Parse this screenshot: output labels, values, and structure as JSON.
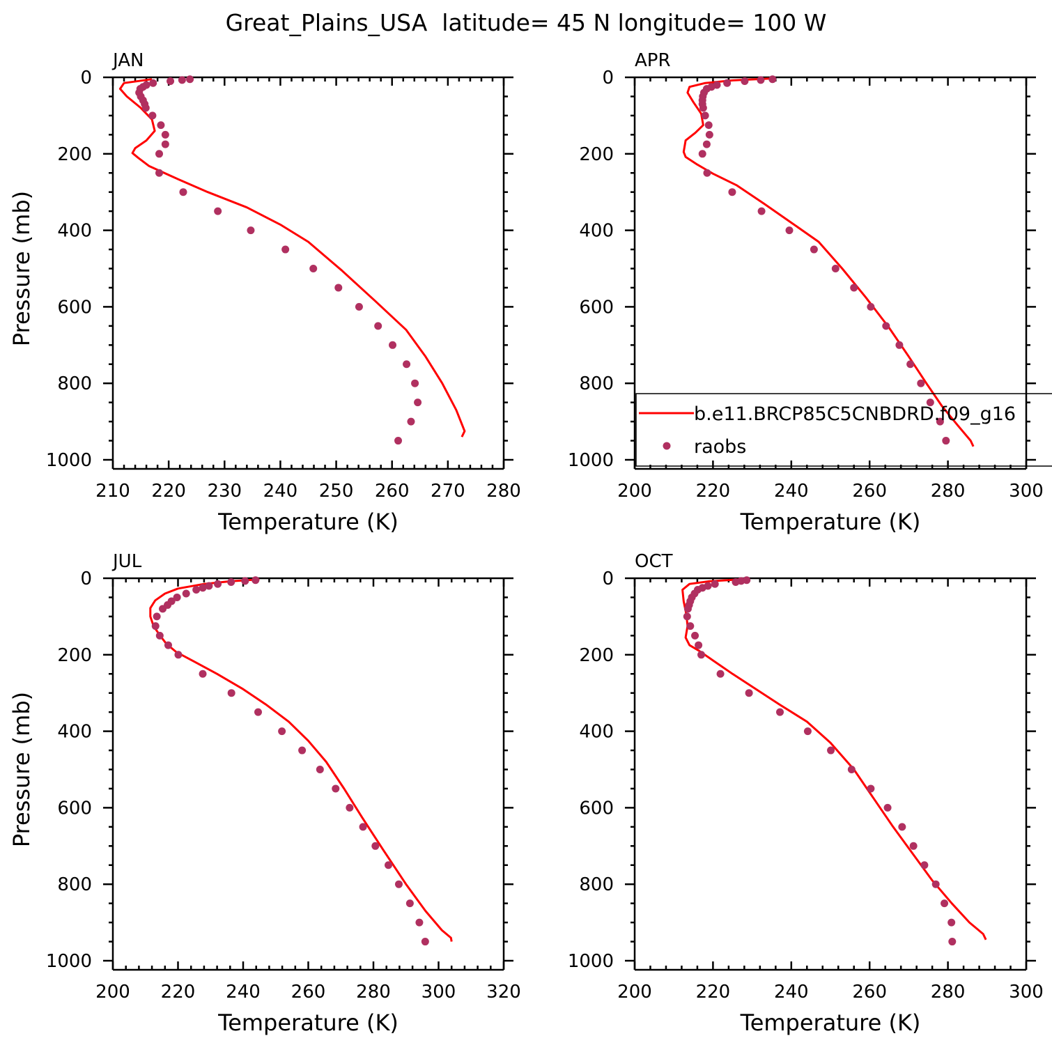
{
  "figure": {
    "title": "Great_Plains_USA  latitude= 45 N longitude= 100 W",
    "colors": {
      "model": "#ff0000",
      "obs": "#b03060",
      "axes": "#000000"
    },
    "legend": {
      "placement": "lower part of APR panel, overflowing to the right",
      "entries": [
        {
          "label": "b.e11.BRCP85C5CNBDRD.f09_g16",
          "symbol": "line",
          "color": "#ff0000"
        },
        {
          "label": "raobs",
          "symbol": "dot",
          "color": "#b03060"
        }
      ]
    }
  },
  "chart_data": [
    {
      "type": "line",
      "panel_title": "JAN",
      "xlabel": "Temperature (K)",
      "ylabel": "Pressure (mb)",
      "xlim": [
        210,
        280
      ],
      "ylim": [
        1000,
        0
      ],
      "xticks": [
        210,
        220,
        230,
        240,
        250,
        260,
        270,
        280
      ],
      "yticks": [
        0,
        200,
        400,
        600,
        800,
        1000
      ],
      "grid": false,
      "series": [
        {
          "name": "b.e11.BRCP85C5CNBDRD.f09_g16",
          "kind": "line",
          "points": [
            [
              217,
              5
            ],
            [
              212,
              15
            ],
            [
              211.3,
              30
            ],
            [
              212.5,
              50
            ],
            [
              215,
              80
            ],
            [
              217,
              110
            ],
            [
              217.5,
              140
            ],
            [
              216,
              165
            ],
            [
              214,
              185
            ],
            [
              213.5,
              198
            ],
            [
              214.5,
              210
            ],
            [
              216.5,
              232
            ],
            [
              221,
              262
            ],
            [
              227,
              300
            ],
            [
              234,
              340
            ],
            [
              240,
              385
            ],
            [
              245,
              430
            ],
            [
              251,
              505
            ],
            [
              257,
              585
            ],
            [
              262.5,
              660
            ],
            [
              266,
              730
            ],
            [
              269,
              800
            ],
            [
              271.5,
              870
            ],
            [
              273,
              925
            ],
            [
              272.5,
              940
            ]
          ]
        },
        {
          "name": "raobs",
          "kind": "dot",
          "points": [
            [
              223.8,
              5
            ],
            [
              222.4,
              7
            ],
            [
              220.3,
              10
            ],
            [
              217.2,
              15
            ],
            [
              216,
              20
            ],
            [
              215.4,
              25
            ],
            [
              214.9,
              30
            ],
            [
              214.7,
              40
            ],
            [
              215,
              50
            ],
            [
              215.4,
              60
            ],
            [
              215.7,
              70
            ],
            [
              215.9,
              80
            ],
            [
              217.1,
              100
            ],
            [
              218.6,
              125
            ],
            [
              219.4,
              150
            ],
            [
              219.4,
              175
            ],
            [
              218.3,
              200
            ],
            [
              218.3,
              250
            ],
            [
              222.6,
              300
            ],
            [
              228.8,
              350
            ],
            [
              234.7,
              400
            ],
            [
              240.9,
              450
            ],
            [
              245.9,
              500
            ],
            [
              250.4,
              550
            ],
            [
              254.1,
              600
            ],
            [
              257.5,
              650
            ],
            [
              260.1,
              700
            ],
            [
              262.6,
              750
            ],
            [
              264.1,
              800
            ],
            [
              264.6,
              850
            ],
            [
              263.4,
              900
            ],
            [
              261.1,
              950
            ]
          ]
        }
      ]
    },
    {
      "type": "line",
      "panel_title": "APR",
      "xlabel": "Temperature (K)",
      "ylabel": "",
      "xlim": [
        200,
        300
      ],
      "ylim": [
        1000,
        0
      ],
      "xticks": [
        200,
        220,
        240,
        260,
        280,
        300
      ],
      "yticks": [
        0,
        200,
        400,
        600,
        800,
        1000
      ],
      "grid": false,
      "series": [
        {
          "name": "b.e11.BRCP85C5CNBDRD.f09_g16",
          "kind": "line",
          "points": [
            [
              235,
              3
            ],
            [
              225,
              8
            ],
            [
              218,
              15
            ],
            [
              214,
              25
            ],
            [
              213.5,
              40
            ],
            [
              215,
              65
            ],
            [
              217,
              95
            ],
            [
              217.5,
              125
            ],
            [
              215.5,
              145
            ],
            [
              213,
              165
            ],
            [
              212.5,
              195
            ],
            [
              213,
              208
            ],
            [
              216,
              228
            ],
            [
              220,
              252
            ],
            [
              226,
              282
            ],
            [
              233,
              330
            ],
            [
              240,
              380
            ],
            [
              247,
              430
            ],
            [
              253,
              500
            ],
            [
              259,
              575
            ],
            [
              265,
              655
            ],
            [
              270,
              730
            ],
            [
              274.5,
              800
            ],
            [
              278.5,
              860
            ],
            [
              282.5,
              910
            ],
            [
              285.8,
              950
            ],
            [
              286.5,
              965
            ]
          ]
        },
        {
          "name": "raobs",
          "kind": "dot",
          "points": [
            [
              235.2,
              5
            ],
            [
              232.2,
              7
            ],
            [
              228.1,
              10
            ],
            [
              223.6,
              15
            ],
            [
              221,
              20
            ],
            [
              219.6,
              25
            ],
            [
              218.4,
              30
            ],
            [
              217.7,
              40
            ],
            [
              217.4,
              50
            ],
            [
              217.3,
              60
            ],
            [
              217.3,
              70
            ],
            [
              217.5,
              80
            ],
            [
              218,
              100
            ],
            [
              218.9,
              125
            ],
            [
              219.1,
              150
            ],
            [
              218.4,
              175
            ],
            [
              217.3,
              200
            ],
            [
              218.5,
              250
            ],
            [
              224.9,
              300
            ],
            [
              232.4,
              350
            ],
            [
              239.5,
              400
            ],
            [
              245.8,
              450
            ],
            [
              251.3,
              500
            ],
            [
              256,
              550
            ],
            [
              260.3,
              600
            ],
            [
              264.2,
              650
            ],
            [
              267.6,
              700
            ],
            [
              270.4,
              750
            ],
            [
              273.1,
              800
            ],
            [
              275.5,
              850
            ],
            [
              278,
              900
            ],
            [
              279.5,
              950
            ]
          ]
        }
      ]
    },
    {
      "type": "line",
      "panel_title": "JUL",
      "xlabel": "Temperature (K)",
      "ylabel": "Pressure (mb)",
      "xlim": [
        200,
        320
      ],
      "ylim": [
        1000,
        0
      ],
      "xticks": [
        200,
        220,
        240,
        260,
        280,
        300,
        320
      ],
      "yticks": [
        0,
        200,
        400,
        600,
        800,
        1000
      ],
      "grid": false,
      "series": [
        {
          "name": "b.e11.BRCP85C5CNBDRD.f09_g16",
          "kind": "line",
          "points": [
            [
              245,
              3
            ],
            [
              236,
              8
            ],
            [
              228,
              15
            ],
            [
              220,
              27
            ],
            [
              216,
              40
            ],
            [
              213,
              58
            ],
            [
              211.5,
              78
            ],
            [
              211.5,
              100
            ],
            [
              212.5,
              125
            ],
            [
              214.5,
              150
            ],
            [
              216.5,
              172
            ],
            [
              219.5,
              193
            ],
            [
              225,
              218
            ],
            [
              232,
              250
            ],
            [
              240,
              290
            ],
            [
              247,
              330
            ],
            [
              254,
              375
            ],
            [
              260,
              425
            ],
            [
              265.5,
              480
            ],
            [
              271,
              550
            ],
            [
              276.5,
              625
            ],
            [
              283,
              710
            ],
            [
              290,
              800
            ],
            [
              296,
              870
            ],
            [
              301,
              920
            ],
            [
              303.8,
              940
            ],
            [
              304,
              950
            ]
          ]
        },
        {
          "name": "raobs",
          "kind": "dot",
          "points": [
            [
              243.8,
              5
            ],
            [
              240.6,
              7
            ],
            [
              236.3,
              10
            ],
            [
              232.2,
              15
            ],
            [
              229.5,
              20
            ],
            [
              227.6,
              25
            ],
            [
              225.6,
              30
            ],
            [
              222.5,
              40
            ],
            [
              219.7,
              50
            ],
            [
              218,
              60
            ],
            [
              216.8,
              70
            ],
            [
              215.3,
              80
            ],
            [
              213.5,
              100
            ],
            [
              213.1,
              125
            ],
            [
              214.4,
              150
            ],
            [
              217,
              175
            ],
            [
              220.1,
              200
            ],
            [
              227.6,
              250
            ],
            [
              236.4,
              300
            ],
            [
              244.6,
              350
            ],
            [
              251.9,
              400
            ],
            [
              258.1,
              450
            ],
            [
              263.6,
              500
            ],
            [
              268.4,
              550
            ],
            [
              272.7,
              600
            ],
            [
              276.8,
              650
            ],
            [
              280.6,
              700
            ],
            [
              284.6,
              750
            ],
            [
              287.8,
              800
            ],
            [
              291.2,
              850
            ],
            [
              294.1,
              900
            ],
            [
              295.9,
              950
            ]
          ]
        }
      ]
    },
    {
      "type": "line",
      "panel_title": "OCT",
      "xlabel": "Temperature (K)",
      "ylabel": "",
      "xlim": [
        200,
        300
      ],
      "ylim": [
        1000,
        0
      ],
      "xticks": [
        200,
        220,
        240,
        260,
        280,
        300
      ],
      "yticks": [
        0,
        200,
        400,
        600,
        800,
        1000
      ],
      "grid": false,
      "series": [
        {
          "name": "b.e11.BRCP85C5CNBDRD.f09_g16",
          "kind": "line",
          "points": [
            [
              227,
              3
            ],
            [
              219,
              8
            ],
            [
              214,
              15
            ],
            [
              212.2,
              30
            ],
            [
              212.5,
              60
            ],
            [
              213.2,
              95
            ],
            [
              213.5,
              125
            ],
            [
              213,
              155
            ],
            [
              214,
              175
            ],
            [
              216.5,
              190
            ],
            [
              220,
              215
            ],
            [
              225,
              250
            ],
            [
              231,
              290
            ],
            [
              237,
              330
            ],
            [
              244,
              375
            ],
            [
              250,
              430
            ],
            [
              256,
              500
            ],
            [
              261,
              575
            ],
            [
              266,
              650
            ],
            [
              271,
              720
            ],
            [
              276,
              790
            ],
            [
              281,
              850
            ],
            [
              285.5,
              900
            ],
            [
              289,
              930
            ],
            [
              289.7,
              945
            ]
          ]
        },
        {
          "name": "raobs",
          "kind": "dot",
          "points": [
            [
              228.6,
              5
            ],
            [
              227.2,
              7
            ],
            [
              225.8,
              10
            ],
            [
              220.5,
              15
            ],
            [
              218.7,
              20
            ],
            [
              217.3,
              25
            ],
            [
              216.1,
              30
            ],
            [
              215.3,
              40
            ],
            [
              214.6,
              50
            ],
            [
              214.2,
              60
            ],
            [
              213.9,
              70
            ],
            [
              213.6,
              80
            ],
            [
              213.4,
              100
            ],
            [
              214.2,
              125
            ],
            [
              215.4,
              150
            ],
            [
              216.3,
              175
            ],
            [
              217,
              200
            ],
            [
              221.9,
              250
            ],
            [
              229.2,
              300
            ],
            [
              237.1,
              350
            ],
            [
              244.2,
              400
            ],
            [
              250.1,
              450
            ],
            [
              255.4,
              500
            ],
            [
              260.3,
              550
            ],
            [
              264.6,
              600
            ],
            [
              268.3,
              650
            ],
            [
              271.2,
              700
            ],
            [
              274,
              750
            ],
            [
              276.9,
              800
            ],
            [
              279.1,
              850
            ],
            [
              280.9,
              900
            ],
            [
              281.1,
              950
            ]
          ]
        }
      ]
    }
  ]
}
